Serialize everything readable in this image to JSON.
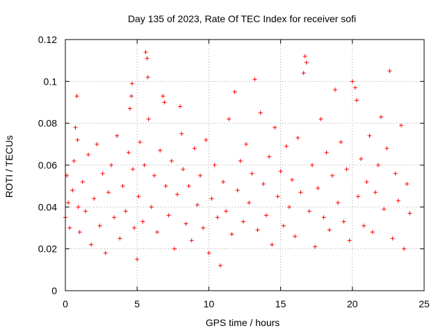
{
  "chart_data": {
    "type": "scatter",
    "title": "Day 135 of 2023, Rate Of TEC Index for receiver sofi",
    "xlabel": "GPS time / hours",
    "ylabel": "ROTI / TECUs",
    "xlim": [
      0,
      25
    ],
    "ylim": [
      0,
      0.12
    ],
    "xticks": [
      "0",
      "5",
      "10",
      "15",
      "20",
      "25"
    ],
    "yticks": [
      "0",
      "0.02",
      "0.04",
      "0.06",
      "0.08",
      "0.1",
      "0.12"
    ],
    "grid": true,
    "marker": "+",
    "series": [
      {
        "name": "ROTI",
        "color": "#ff0000",
        "x": [
          0.0,
          0.1,
          0.2,
          0.3,
          0.5,
          0.6,
          0.7,
          0.8,
          0.85,
          0.9,
          1.0,
          1.2,
          1.4,
          1.6,
          1.8,
          2.0,
          2.2,
          2.4,
          2.6,
          2.8,
          3.0,
          3.2,
          3.4,
          3.6,
          3.8,
          4.0,
          4.2,
          4.4,
          4.5,
          4.6,
          4.65,
          4.7,
          4.8,
          5.0,
          5.1,
          5.2,
          5.4,
          5.5,
          5.6,
          5.7,
          5.75,
          5.8,
          6.0,
          6.2,
          6.4,
          6.6,
          6.8,
          6.9,
          7.0,
          7.2,
          7.4,
          7.6,
          7.8,
          8.0,
          8.1,
          8.2,
          8.4,
          8.6,
          8.8,
          9.0,
          9.2,
          9.4,
          9.6,
          9.8,
          10.0,
          10.2,
          10.4,
          10.6,
          10.8,
          11.0,
          11.2,
          11.4,
          11.6,
          11.8,
          12.0,
          12.2,
          12.4,
          12.6,
          12.8,
          13.0,
          13.2,
          13.4,
          13.6,
          13.8,
          14.0,
          14.2,
          14.4,
          14.6,
          14.8,
          15.0,
          15.2,
          15.4,
          15.6,
          15.8,
          16.0,
          16.2,
          16.4,
          16.6,
          16.7,
          16.8,
          17.0,
          17.2,
          17.4,
          17.6,
          17.8,
          18.0,
          18.2,
          18.4,
          18.6,
          18.8,
          19.0,
          19.2,
          19.4,
          19.6,
          19.8,
          20.0,
          20.2,
          20.3,
          20.4,
          20.6,
          20.8,
          21.0,
          21.2,
          21.4,
          21.6,
          21.8,
          22.0,
          22.2,
          22.4,
          22.6,
          22.8,
          23.0,
          23.2,
          23.4,
          23.6,
          23.8,
          24.0
        ],
        "y": [
          0.035,
          0.055,
          0.042,
          0.03,
          0.048,
          0.062,
          0.078,
          0.093,
          0.072,
          0.04,
          0.028,
          0.052,
          0.038,
          0.065,
          0.022,
          0.044,
          0.07,
          0.031,
          0.056,
          0.018,
          0.047,
          0.06,
          0.035,
          0.074,
          0.025,
          0.05,
          0.038,
          0.066,
          0.087,
          0.093,
          0.099,
          0.058,
          0.03,
          0.015,
          0.045,
          0.071,
          0.033,
          0.06,
          0.114,
          0.111,
          0.102,
          0.082,
          0.04,
          0.055,
          0.028,
          0.067,
          0.093,
          0.09,
          0.05,
          0.036,
          0.062,
          0.02,
          0.046,
          0.088,
          0.075,
          0.058,
          0.032,
          0.05,
          0.024,
          0.068,
          0.041,
          0.055,
          0.03,
          0.072,
          0.018,
          0.044,
          0.06,
          0.035,
          0.012,
          0.052,
          0.038,
          0.082,
          0.027,
          0.095,
          0.048,
          0.062,
          0.033,
          0.07,
          0.042,
          0.056,
          0.101,
          0.029,
          0.085,
          0.051,
          0.036,
          0.064,
          0.022,
          0.078,
          0.045,
          0.057,
          0.031,
          0.069,
          0.04,
          0.053,
          0.026,
          0.073,
          0.047,
          0.104,
          0.112,
          0.109,
          0.038,
          0.06,
          0.021,
          0.049,
          0.082,
          0.035,
          0.066,
          0.029,
          0.055,
          0.096,
          0.042,
          0.071,
          0.033,
          0.058,
          0.024,
          0.1,
          0.097,
          0.091,
          0.045,
          0.063,
          0.031,
          0.052,
          0.074,
          0.028,
          0.047,
          0.06,
          0.083,
          0.039,
          0.068,
          0.105,
          0.025,
          0.056,
          0.043,
          0.079,
          0.02,
          0.051,
          0.037
        ]
      }
    ]
  }
}
